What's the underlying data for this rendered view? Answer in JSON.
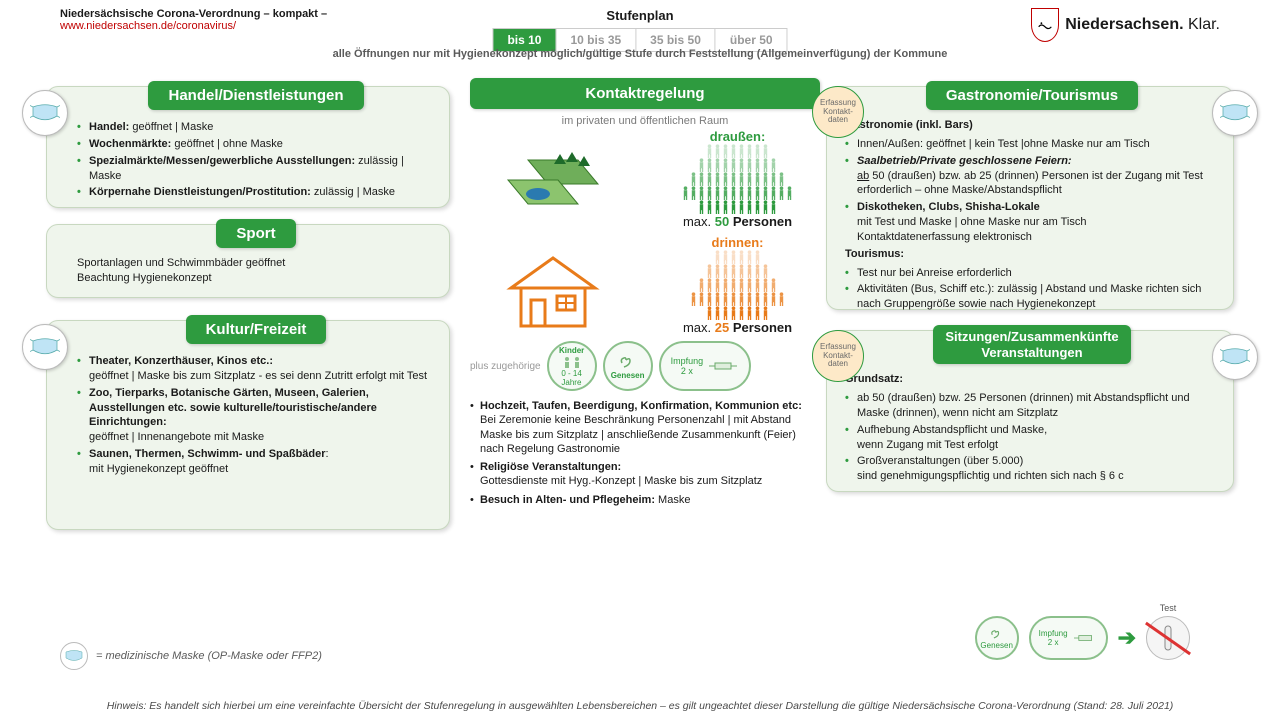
{
  "header": {
    "title": "Niedersächsische Corona-Verordnung – kompakt –",
    "url": "www.niedersachsen.de/coronavirus/",
    "stufen_label": "Stufenplan",
    "tabs": [
      "bis 10",
      "10 bis 35",
      "35 bis 50",
      "über 50"
    ],
    "active_tab": 0,
    "logo_text_bold": "Niedersachsen.",
    "logo_text_light": " Klar.",
    "subhead": "alle Öffnungen nur mit Hygienekonzept möglich/gültige Stufe durch Feststellung (Allgemeinverfügung) der Kommune"
  },
  "colors": {
    "green": "#2e9b3f",
    "orange": "#e87b1a",
    "panel_bg": "#eff5ec",
    "red": "#c00000"
  },
  "panels": {
    "handel": {
      "title": "Handel/Dienstleistungen",
      "items": [
        "<b>Handel:</b> geöffnet | Maske",
        "<b>Wochenmärkte:</b> geöffnet | ohne Maske",
        "<b>Spezialmärkte/Messen/gewerbliche Ausstellungen:</b> zulässig | Maske",
        "<b>Körpernahe Dienstleistungen/Prostitution:</b>  zulässig | Maske"
      ]
    },
    "sport": {
      "title": "Sport",
      "text": "Sportanlagen und Schwimmbäder geöffnet\nBeachtung Hygienekonzept"
    },
    "kultur": {
      "title": "Kultur/Freizeit",
      "items": [
        "<b>Theater, Konzerthäuser, Kinos etc.:</b><br>geöffnet | Maske bis zum Sitzplatz - es sei denn Zutritt erfolgt mit Test",
        "<b>Zoo, Tierparks, Botanische Gärten, Museen, Galerien, Ausstellungen etc. sowie kulturelle/touristische/andere Einrichtungen:</b><br>geöffnet | Innenangebote mit Maske",
        "<b>Saunen, Thermen, Schwimm- und Spaßbäder</b>:<br>mit Hygienekonzept geöffnet"
      ]
    },
    "gastro": {
      "title": "Gastronomie/Tourismus",
      "lead1": "Gastronomie (inkl. Bars)",
      "items1": [
        "Innen/Außen: geöffnet | kein Test |ohne Maske nur am Tisch",
        "<b><i>Saalbetrieb/Private geschlossene Feiern:</i></b><br><u>ab</u> 50 (draußen) bzw. ab 25 (drinnen) Personen ist der Zugang mit Test erforderlich – ohne Maske/Abstandspflicht",
        "<b>Diskotheken, Clubs, Shisha-Lokale</b><br>mit Test und Maske | ohne Maske nur am Tisch<br>Kontaktdatenerfassung elektronisch"
      ],
      "lead2": "Tourismus:",
      "items2": [
        "Test nur bei Anreise erforderlich",
        "Aktivitäten (Bus, Schiff etc.):  zulässig | Abstand und Maske richten sich nach Gruppengröße sowie nach Hygienekonzept"
      ]
    },
    "sitz": {
      "title": "Sitzungen/Zusammenkünfte Veranstaltungen",
      "lead": "Grundsatz:",
      "items": [
        "ab 50 (draußen) bzw. 25 Personen (drinnen) mit Abstandspflicht und Maske (drinnen), wenn nicht am Sitzplatz",
        "Aufhebung Abstandspflicht und Maske,<br>wenn Zugang mit Test erfolgt",
        "Großveranstaltungen (über 5.000)<br>sind genehmigungspflichtig und richten sich nach § 6 c"
      ]
    }
  },
  "center": {
    "title": "Kontaktregelung",
    "sub": "im privaten und öffentlichen Raum",
    "out_label": "draußen:",
    "out_max_pre": "max. ",
    "out_max_num": "50",
    "out_max_post": " Personen",
    "in_label": "drinnen:",
    "in_max_pre": "max. ",
    "in_max_num": "25",
    "in_max_post": " Personen",
    "plus": "plus zugehörige",
    "kinder": "Kinder",
    "kinder_sub": "0 - 14\nJahre",
    "genesen": "Genesen",
    "impf": "Impfung",
    "impf_sub": "2 x",
    "list": [
      "<b>Hochzeit, Taufen, Beerdigung, Konfirmation, Kommunion etc:</b><br>Bei Zeremonie keine Beschränkung Personenzahl | mit Abstand  Maske bis zum Sitzplatz | anschließende Zusammenkunft (Feier) nach Regelung Gastronomie",
      "<b>Religiöse Veranstaltungen:</b><br>Gottesdienste mit Hyg.-Konzept  | Maske bis zum Sitzplatz",
      "<b>Besuch in Alten- und Pflegeheim:</b> Maske"
    ]
  },
  "erfass": "Erfassung\nKontakt-\ndaten",
  "legend": "= medizinische Maske (OP-Maske oder FFP2)",
  "test_label": "Test",
  "footer": "Hinweis: Es handelt sich hierbei um eine vereinfachte Übersicht der Stufenregelung in ausgewählten Lebensbereichen – es gilt ungeachtet dieser Darstellung die gültige Niedersächsische Corona-Verordnung (Stand: 28. Juli 2021)"
}
